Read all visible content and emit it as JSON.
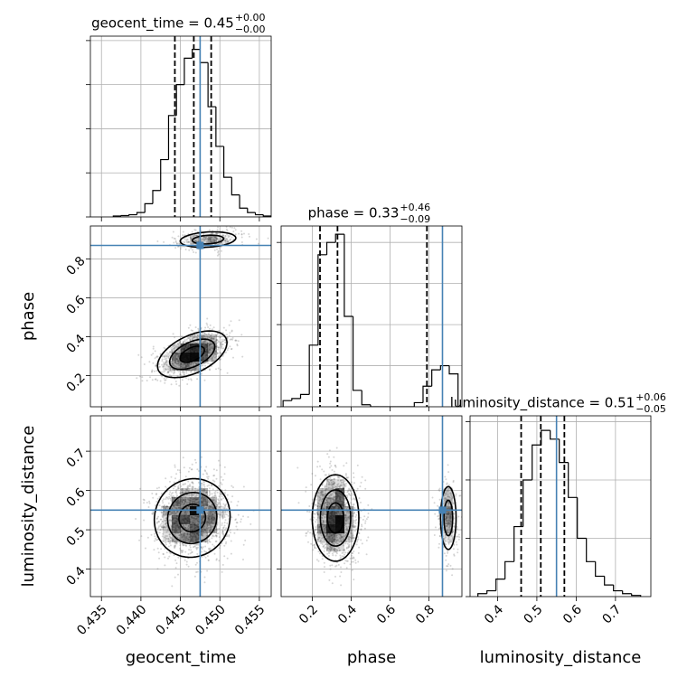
{
  "chart_data": {
    "type": "corner",
    "truth_color": "#4682b4",
    "grid": true,
    "parameters": [
      {
        "name": "geocent_time",
        "title": {
          "text": "geocent_time = 0.45",
          "plus": "+0.00",
          "minus": "−0.00"
        },
        "lim": [
          0.4336,
          0.4565
        ],
        "ticks": [
          0.435,
          {
            "value": 0.44,
            "label": "0.440"
          },
          0.445,
          {
            "value": 0.45,
            "label": "0.450"
          },
          0.455
        ],
        "truth": 0.4475,
        "quantiles": [
          0.4443,
          0.4467,
          0.4489
        ],
        "hist": {
          "bins": [
            0.4365,
            0.4375,
            0.4385,
            0.4395,
            0.4405,
            0.4415,
            0.4425,
            0.4435,
            0.4445,
            0.4455,
            0.4465,
            0.4475,
            0.4485,
            0.4495,
            0.4505,
            0.4515,
            0.4525,
            0.4535,
            0.4545,
            0.4555,
            0.4565
          ],
          "counts": [
            0.02,
            0.03,
            0.05,
            0.1,
            0.3,
            0.6,
            1.3,
            2.3,
            3.0,
            3.6,
            3.8,
            3.5,
            2.5,
            1.6,
            0.9,
            0.5,
            0.2,
            0.1,
            0.05,
            0.02
          ],
          "ylim": [
            0,
            4.1
          ],
          "yticks": [
            0,
            1,
            2,
            3,
            4
          ]
        }
      },
      {
        "name": "phase",
        "title": {
          "text": "phase = 0.33",
          "plus": "+0.46",
          "minus": "−0.09"
        },
        "lim": [
          0.04,
          0.97
        ],
        "ticks": [
          0.2,
          0.4,
          0.6,
          0.8
        ],
        "truth": 0.87,
        "quantiles": [
          0.24,
          0.33,
          0.79
        ],
        "hist": {
          "bins": [
            0.05,
            0.095,
            0.14,
            0.185,
            0.23,
            0.275,
            0.32,
            0.365,
            0.41,
            0.455,
            0.5,
            0.545,
            0.59,
            0.635,
            0.68,
            0.725,
            0.77,
            0.815,
            0.86,
            0.905,
            0.95
          ],
          "counts": [
            0.15,
            0.2,
            0.3,
            1.5,
            3.7,
            4.0,
            4.2,
            2.2,
            0.4,
            0.05,
            0,
            0,
            0,
            0,
            0,
            0.1,
            0.5,
            0.9,
            1.0,
            0.8
          ],
          "ylim": [
            0,
            4.4
          ],
          "yticks": [
            0,
            1,
            2,
            3,
            4
          ]
        }
      },
      {
        "name": "luminosity_distance",
        "title": {
          "text": "luminosity_distance = 0.51",
          "plus": "+0.06",
          "minus": "−0.05"
        },
        "lim": [
          0.33,
          0.79
        ],
        "ticks": [
          0.4,
          0.5,
          0.6,
          0.7
        ],
        "truth": 0.55,
        "quantiles": [
          0.46,
          0.51,
          0.57
        ],
        "hist": {
          "bins": [
            0.35,
            0.373,
            0.396,
            0.419,
            0.442,
            0.465,
            0.488,
            0.511,
            0.534,
            0.557,
            0.58,
            0.603,
            0.626,
            0.649,
            0.672,
            0.695,
            0.718,
            0.741,
            0.764
          ],
          "counts": [
            0.05,
            0.1,
            0.3,
            0.6,
            1.2,
            2.0,
            2.6,
            2.85,
            2.7,
            2.3,
            1.7,
            1.0,
            0.6,
            0.35,
            0.2,
            0.1,
            0.05,
            0.02
          ],
          "ylim": [
            0,
            3.1
          ],
          "yticks": [
            0,
            1,
            2,
            3
          ]
        }
      }
    ],
    "pairs": [
      {
        "x": 0,
        "y": 1,
        "modes": [
          {
            "center": [
              0.4465,
              0.31
            ],
            "sd": [
              0.0022,
              0.06
            ],
            "rho": 0.5,
            "weight": 0.8
          },
          {
            "center": [
              0.4485,
              0.9
            ],
            "sd": [
              0.0022,
              0.025
            ],
            "rho": 0.2,
            "weight": 0.2
          }
        ]
      },
      {
        "x": 0,
        "y": 2,
        "modes": [
          {
            "center": [
              0.4465,
              0.53
            ],
            "sd": [
              0.0024,
              0.05
            ],
            "rho": 0.05,
            "weight": 1
          }
        ]
      },
      {
        "x": 1,
        "y": 2,
        "modes": [
          {
            "center": [
              0.32,
              0.53
            ],
            "sd": [
              0.06,
              0.055
            ],
            "rho": 0,
            "weight": 0.8
          },
          {
            "center": [
              0.9,
              0.53
            ],
            "sd": [
              0.025,
              0.05
            ],
            "rho": 0,
            "weight": 0.2
          }
        ]
      }
    ]
  }
}
